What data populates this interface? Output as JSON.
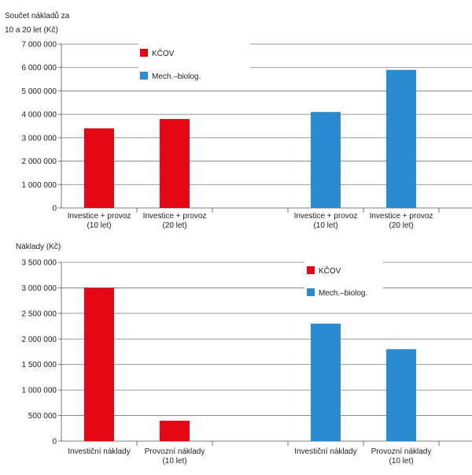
{
  "colors": {
    "kcov": "#e30613",
    "mech": "#2a8bd1",
    "grid": "#777777",
    "axis": "#555555"
  },
  "chart_data": [
    {
      "type": "bar",
      "ylabel": "Součet nákladů za 10 a 20 let (Kč)",
      "ylabel_lines": [
        "Součet nákladů za",
        "10 a 20 let (Kč)"
      ],
      "ylim": [
        0,
        7000000
      ],
      "yticks": [
        0,
        1000000,
        2000000,
        3000000,
        4000000,
        5000000,
        6000000,
        7000000
      ],
      "ytick_labels": [
        "0",
        "1 000 000",
        "2 000 000",
        "3 000 000",
        "4 000 000",
        "5 000 000",
        "6 000 000",
        "7 000 000"
      ],
      "grid": true,
      "legend_position": "top-left",
      "categories": [
        [
          "Investice + provoz",
          "(10 let)"
        ],
        [
          "Investice + provoz",
          "(20 let)"
        ],
        [
          "",
          ""
        ],
        [
          "Investice + provoz",
          "(10 let)"
        ],
        [
          "Investice + provoz",
          "(20 let)"
        ]
      ],
      "series": [
        {
          "name": "KČOV",
          "color_key": "kcov",
          "values": [
            3400000,
            3800000,
            null,
            null,
            null
          ]
        },
        {
          "name": "Mech.–biolog.",
          "color_key": "mech",
          "values": [
            null,
            null,
            null,
            4100000,
            5900000
          ]
        }
      ]
    },
    {
      "type": "bar",
      "ylabel": "Náklady (Kč)",
      "ylabel_lines": [
        "Náklady (Kč)"
      ],
      "ylim": [
        0,
        3500000
      ],
      "yticks": [
        0,
        500000,
        1000000,
        1500000,
        2000000,
        2500000,
        3000000,
        3500000
      ],
      "ytick_labels": [
        "0",
        "500 000",
        "1 000 000",
        "1 500 000",
        "2 000 000",
        "2 500 000",
        "3 000 000",
        "3 500 000"
      ],
      "grid": true,
      "legend_position": "top-right",
      "categories": [
        [
          "Investiční náklady"
        ],
        [
          "Provozní náklady",
          "(10 let)"
        ],
        [
          ""
        ],
        [
          "Investiční náklady"
        ],
        [
          "Provozní náklady",
          "(10 let)"
        ]
      ],
      "series": [
        {
          "name": "KČOV",
          "color_key": "kcov",
          "values": [
            3000000,
            400000,
            null,
            null,
            null
          ]
        },
        {
          "name": "Mech.–biolog.",
          "color_key": "mech",
          "values": [
            null,
            null,
            null,
            2300000,
            1800000
          ]
        }
      ]
    }
  ]
}
